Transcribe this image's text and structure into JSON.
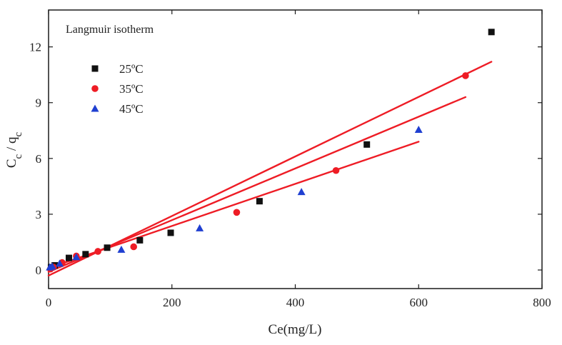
{
  "chart_data": {
    "type": "scatter",
    "title": "",
    "annotation": "Langmuir isotherm",
    "xlabel": "Ce(mg/L)",
    "ylabel": "Cc / qc",
    "xlim": [
      0,
      800
    ],
    "ylim": [
      -1,
      14
    ],
    "x_ticks": [
      0,
      200,
      400,
      600,
      800
    ],
    "y_ticks": [
      0,
      3,
      6,
      9,
      12
    ],
    "grid": false,
    "legend_position": "top-left",
    "series": [
      {
        "name": "25ºC",
        "marker": "square",
        "color": "#111111",
        "points": [
          {
            "x": 4,
            "y": 0.15
          },
          {
            "x": 10,
            "y": 0.25
          },
          {
            "x": 33,
            "y": 0.65
          },
          {
            "x": 60,
            "y": 0.85
          },
          {
            "x": 95,
            "y": 1.2
          },
          {
            "x": 148,
            "y": 1.6
          },
          {
            "x": 198,
            "y": 2.0
          },
          {
            "x": 342,
            "y": 3.7
          },
          {
            "x": 516,
            "y": 6.75
          },
          {
            "x": 718,
            "y": 12.8
          }
        ],
        "fit": {
          "x": [
            0,
            718
          ],
          "y": [
            -0.3,
            11.2
          ]
        }
      },
      {
        "name": "35ºC",
        "marker": "circle",
        "color": "#ee1c25",
        "points": [
          {
            "x": 3,
            "y": 0.05
          },
          {
            "x": 8,
            "y": 0.15
          },
          {
            "x": 22,
            "y": 0.4
          },
          {
            "x": 45,
            "y": 0.75
          },
          {
            "x": 80,
            "y": 1.0
          },
          {
            "x": 138,
            "y": 1.25
          },
          {
            "x": 305,
            "y": 3.1
          },
          {
            "x": 466,
            "y": 5.35
          },
          {
            "x": 676,
            "y": 10.45
          }
        ],
        "fit": {
          "x": [
            0,
            676
          ],
          "y": [
            -0.1,
            9.3
          ]
        }
      },
      {
        "name": "45ºC",
        "marker": "triangle",
        "color": "#1f3fd1",
        "points": [
          {
            "x": 2,
            "y": 0.15
          },
          {
            "x": 6,
            "y": 0.2
          },
          {
            "x": 18,
            "y": 0.35
          },
          {
            "x": 45,
            "y": 0.7
          },
          {
            "x": 118,
            "y": 1.1
          },
          {
            "x": 245,
            "y": 2.25
          },
          {
            "x": 410,
            "y": 4.2
          },
          {
            "x": 600,
            "y": 7.55
          }
        ],
        "fit": {
          "x": [
            0,
            600
          ],
          "y": [
            0.1,
            6.9
          ]
        }
      }
    ]
  }
}
